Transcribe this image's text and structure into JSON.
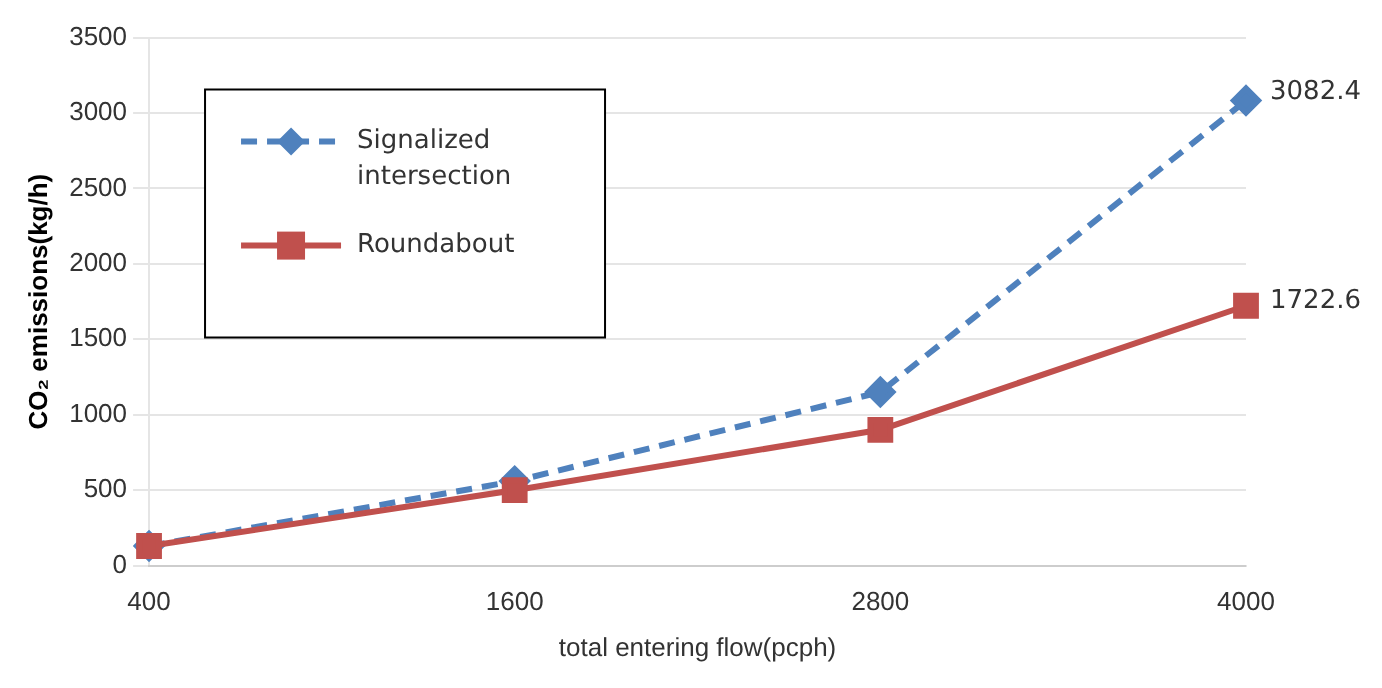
{
  "chart_data": {
    "type": "line",
    "xlabel": "total entering flow(pcph)",
    "ylabel": "CO₂ emissions(kg/h)",
    "categories": [
      "400",
      "1600",
      "2800",
      "4000"
    ],
    "series": [
      {
        "name": "Signalized intersection",
        "color": "#4f81bd",
        "values": [
          130,
          560,
          1150,
          3082.4
        ],
        "marker": "diamond",
        "line_style": "dashed",
        "value_labels": [
          null,
          null,
          null,
          "3082.4"
        ]
      },
      {
        "name": "Roundabout",
        "color": "#c0504d",
        "values": [
          130,
          500,
          900,
          1722.6
        ],
        "marker": "square",
        "line_style": "solid",
        "value_labels": [
          null,
          null,
          null,
          "1722.6"
        ]
      }
    ],
    "ylim": [
      0,
      3500
    ],
    "yticks": [
      0,
      500,
      1000,
      1500,
      2000,
      2500,
      3000,
      3500
    ],
    "grid": "y",
    "legend": "top left"
  }
}
